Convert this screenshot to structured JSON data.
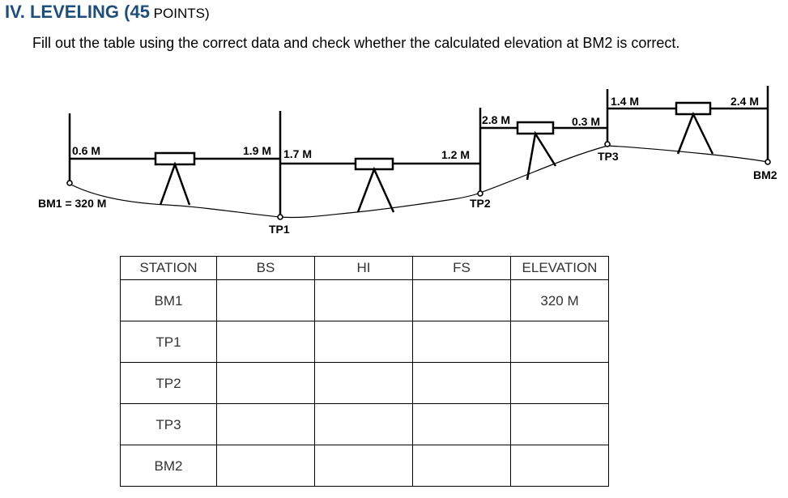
{
  "heading": {
    "prefix": "IV. LEVELING (",
    "points_value": "45",
    "points_word": " POINTS",
    "suffix": ")"
  },
  "instructions": "Fill out the table using the correct data and check whether the calculated elevation at BM2 is correct.",
  "diagram": {
    "stations": {
      "bm1": "BM1 = 320 M",
      "tp1": "TP1",
      "tp2": "TP2",
      "tp3": "TP3",
      "bm2": "BM2"
    },
    "readings": {
      "bm1_bs": "0.6 M",
      "tp1_fs": "1.9 M",
      "tp1_bs": "1.7 M",
      "tp2_fs": "1.2 M",
      "tp2_bs": "2.8 M",
      "tp3_fs": "0.3 M",
      "tp3_bs": "1.4 M",
      "bm2_fs": "2.4 M"
    }
  },
  "table": {
    "headers": [
      "STATION",
      "BS",
      "HI",
      "FS",
      "ELEVATION"
    ],
    "rows": [
      {
        "station": "BM1",
        "bs": "",
        "hi": "",
        "fs": "",
        "elevation": "320 M"
      },
      {
        "station": "TP1",
        "bs": "",
        "hi": "",
        "fs": "",
        "elevation": ""
      },
      {
        "station": "TP2",
        "bs": "",
        "hi": "",
        "fs": "",
        "elevation": ""
      },
      {
        "station": "TP3",
        "bs": "",
        "hi": "",
        "fs": "",
        "elevation": ""
      },
      {
        "station": "BM2",
        "bs": "",
        "hi": "",
        "fs": "",
        "elevation": ""
      }
    ]
  }
}
